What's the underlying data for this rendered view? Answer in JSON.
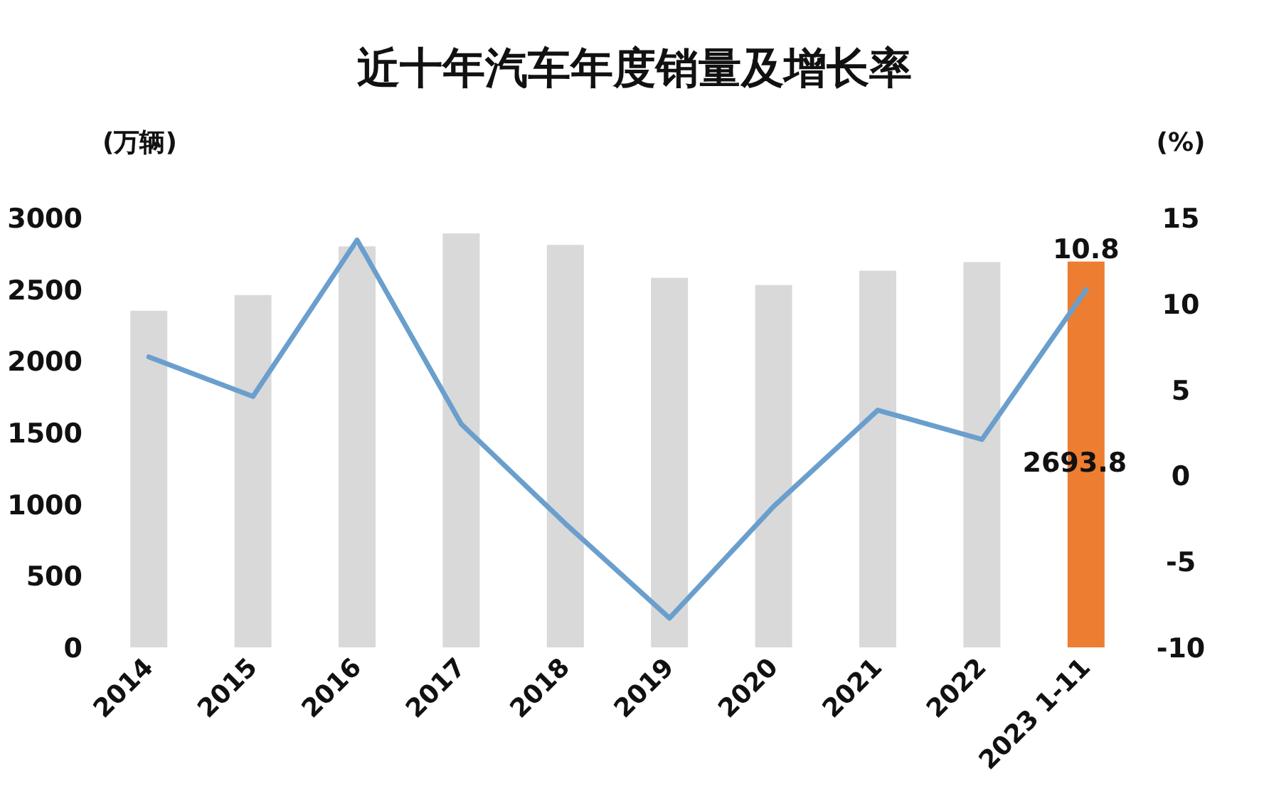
{
  "chart_data": {
    "type": "bar",
    "title": "近十年汽车年度销量及增长率",
    "ylabel": "(万辆)",
    "y2label": "(%)",
    "categories": [
      "2014",
      "2015",
      "2016",
      "2017",
      "2018",
      "2019",
      "2020",
      "2021",
      "2022",
      "2023 1-11"
    ],
    "series": [
      {
        "colors": [
          "#d9d9d9",
          "#d9d9d9",
          "#d9d9d9",
          "#d9d9d9",
          "#d9d9d9",
          "#d9d9d9",
          "#d9d9d9",
          "#d9d9d9",
          "#d9d9d9",
          "#ed7d31"
        ],
        "values": [
          2350,
          2460,
          2800,
          2890,
          2810,
          2580,
          2530,
          2630,
          2690,
          2693.8
        ],
        "value_labels": [
          null,
          null,
          null,
          null,
          null,
          null,
          null,
          null,
          null,
          "2693.8"
        ]
      },
      {
        "type": "line",
        "axis": "y2",
        "color": "#6a9fcd",
        "values": [
          6.9,
          4.6,
          13.7,
          3.0,
          -2.8,
          -8.3,
          -1.8,
          3.8,
          2.1,
          10.8
        ],
        "value_labels": [
          null,
          null,
          null,
          null,
          null,
          null,
          null,
          null,
          null,
          "10.8"
        ]
      }
    ],
    "ylim": [
      0,
      3000
    ],
    "yticks": [
      0,
      500,
      1000,
      1500,
      2000,
      2500,
      3000
    ],
    "y2lim": [
      -10,
      15
    ],
    "y2ticks": [
      -10,
      -5,
      0,
      5,
      10,
      15
    ],
    "grid": false
  }
}
